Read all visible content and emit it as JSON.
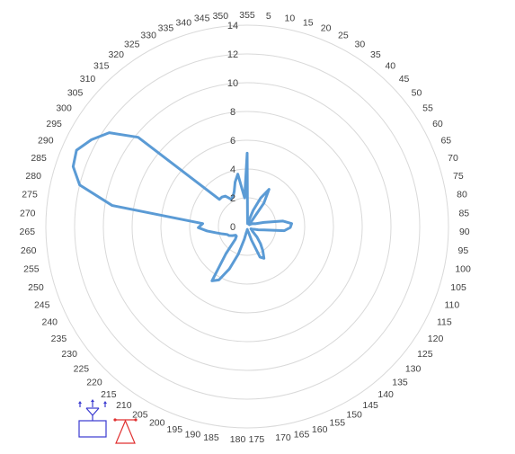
{
  "chart_data": {
    "type": "radar",
    "title": "",
    "radial_axis": {
      "min": 0,
      "max": 14,
      "step": 2,
      "tick_labels": [
        "0",
        "2",
        "4",
        "6",
        "8",
        "10",
        "12",
        "14"
      ]
    },
    "angle_labels": [
      "355",
      "5",
      "10",
      "15",
      "20",
      "25",
      "30",
      "35",
      "40",
      "45",
      "50",
      "55",
      "60",
      "65",
      "70",
      "75",
      "80",
      "85",
      "90",
      "95",
      "100",
      "105",
      "110",
      "115",
      "120",
      "125",
      "130",
      "135",
      "140",
      "145",
      "150",
      "155",
      "160",
      "165",
      "170",
      "175",
      "180",
      "185",
      "190",
      "195",
      "200",
      "205",
      "210",
      "215",
      "220",
      "225",
      "230",
      "235",
      "240",
      "245",
      "250",
      "255",
      "260",
      "265",
      "270",
      "275",
      "280",
      "285",
      "290",
      "295",
      "300",
      "305",
      "310",
      "315",
      "320",
      "325",
      "330",
      "335",
      "340",
      "345",
      "350"
    ],
    "gridlines": true,
    "series": [
      {
        "values": [
          5.1,
          0.3,
          0.2,
          0.4,
          1.2,
          2.2,
          3.0,
          2.0,
          0.4,
          0.2,
          0.2,
          0.3,
          0.4,
          0.5,
          0.6,
          1.2,
          2.5,
          3.1,
          3.0,
          2.6,
          1.2,
          0.8,
          0.5,
          0.4,
          0.3,
          0.4,
          0.5,
          1.0,
          1.5,
          2.0,
          2.5,
          2.3,
          1.0,
          0.4,
          0.3,
          0.2,
          0.3,
          0.4,
          0.9,
          2.0,
          3.2,
          4.2,
          4.5,
          2.4,
          1.2,
          1.0,
          1.0,
          1.2,
          1.4,
          1.5,
          1.8,
          2.2,
          2.8,
          3.4,
          3.1,
          9.5,
          12.0,
          12.8,
          13.0,
          12.4,
          11.6,
          9.8,
          2.7,
          2.7,
          2.6,
          2.2,
          2.3,
          2.6,
          3.2,
          3.7,
          2.0
        ],
        "color": "#5B9BD5"
      }
    ]
  }
}
